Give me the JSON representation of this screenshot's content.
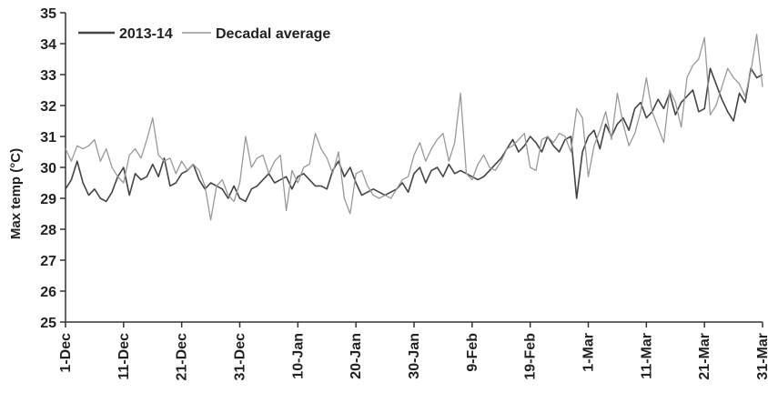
{
  "chart_data": {
    "type": "line",
    "title": "",
    "xlabel": "",
    "ylabel": "Max temp (°C)",
    "ylim": [
      25,
      35
    ],
    "yticks": [
      25,
      26,
      27,
      28,
      29,
      30,
      31,
      32,
      33,
      34,
      35
    ],
    "x_start": "1-Dec",
    "x_end": "31-Mar",
    "xticks": [
      {
        "label": "1-Dec",
        "day": 0
      },
      {
        "label": "11-Dec",
        "day": 10
      },
      {
        "label": "21-Dec",
        "day": 20
      },
      {
        "label": "31-Dec",
        "day": 30
      },
      {
        "label": "10-Jan",
        "day": 40
      },
      {
        "label": "20-Jan",
        "day": 50
      },
      {
        "label": "30-Jan",
        "day": 60
      },
      {
        "label": "9-Feb",
        "day": 70
      },
      {
        "label": "19-Feb",
        "day": 80
      },
      {
        "label": "1-Mar",
        "day": 90
      },
      {
        "label": "11-Mar",
        "day": 100
      },
      {
        "label": "21-Mar",
        "day": 110
      },
      {
        "label": "31-Mar",
        "day": 120
      }
    ],
    "grid": false,
    "legend_position": "top-left",
    "series": [
      {
        "name": "2013-14",
        "color": "#444444",
        "values": [
          29.3,
          29.6,
          30.2,
          29.5,
          29.1,
          29.3,
          29.0,
          28.9,
          29.2,
          29.7,
          30.0,
          29.1,
          29.8,
          29.6,
          29.7,
          30.1,
          29.7,
          30.3,
          29.4,
          29.5,
          29.8,
          29.9,
          30.1,
          29.6,
          29.3,
          29.5,
          29.4,
          29.3,
          29.0,
          29.4,
          29.0,
          28.9,
          29.3,
          29.4,
          29.6,
          29.8,
          29.5,
          29.6,
          29.7,
          29.3,
          29.7,
          29.8,
          29.6,
          29.4,
          29.4,
          29.3,
          29.9,
          30.2,
          29.7,
          30.0,
          29.5,
          29.1,
          29.2,
          29.3,
          29.2,
          29.1,
          29.2,
          29.3,
          29.5,
          29.2,
          29.8,
          30.0,
          29.5,
          29.9,
          30.0,
          29.7,
          30.1,
          29.8,
          29.9,
          29.8,
          29.7,
          29.6,
          29.7,
          29.9,
          30.1,
          30.3,
          30.6,
          30.9,
          30.5,
          30.7,
          31.0,
          30.8,
          30.5,
          31.0,
          30.7,
          30.5,
          30.9,
          31.0,
          29.0,
          30.5,
          31.0,
          31.2,
          30.6,
          31.4,
          31.0,
          31.4,
          31.6,
          31.2,
          31.9,
          32.1,
          31.6,
          31.8,
          32.2,
          31.9,
          32.4,
          31.7,
          32.1,
          32.3,
          32.5,
          31.8,
          31.9,
          33.2,
          32.7,
          32.2,
          31.8,
          31.5,
          32.4,
          32.1,
          33.2,
          32.9,
          33.0
        ]
      },
      {
        "name": "Decadal average",
        "color": "#999999",
        "values": [
          30.6,
          30.2,
          30.7,
          30.6,
          30.7,
          30.9,
          30.2,
          30.6,
          30.0,
          29.7,
          29.5,
          30.4,
          30.6,
          30.3,
          30.9,
          31.6,
          30.4,
          30.2,
          30.3,
          29.8,
          30.2,
          29.9,
          30.1,
          29.9,
          29.4,
          28.3,
          29.4,
          29.6,
          29.1,
          28.9,
          29.5,
          31.0,
          30.0,
          30.3,
          30.4,
          29.8,
          30.2,
          30.4,
          28.6,
          29.9,
          29.5,
          30.0,
          30.1,
          31.1,
          30.6,
          30.3,
          29.8,
          30.5,
          29.0,
          28.5,
          29.8,
          29.9,
          29.4,
          29.1,
          29.0,
          29.1,
          29.0,
          29.3,
          29.6,
          29.7,
          30.4,
          30.8,
          30.2,
          30.6,
          30.9,
          31.1,
          30.2,
          30.8,
          32.4,
          29.8,
          29.6,
          30.1,
          30.4,
          30.0,
          29.9,
          30.2,
          30.6,
          30.7,
          30.9,
          31.1,
          30.0,
          29.9,
          30.9,
          31.0,
          30.8,
          31.1,
          31.0,
          30.5,
          31.9,
          31.6,
          29.7,
          30.7,
          31.2,
          31.8,
          30.9,
          32.4,
          31.4,
          30.7,
          31.1,
          31.8,
          32.9,
          31.8,
          31.3,
          30.8,
          32.5,
          32.1,
          31.3,
          32.9,
          33.3,
          33.5,
          34.2,
          31.7,
          32.0,
          32.6,
          33.2,
          32.9,
          32.7,
          32.3,
          33.1,
          34.3,
          32.6
        ]
      }
    ]
  }
}
